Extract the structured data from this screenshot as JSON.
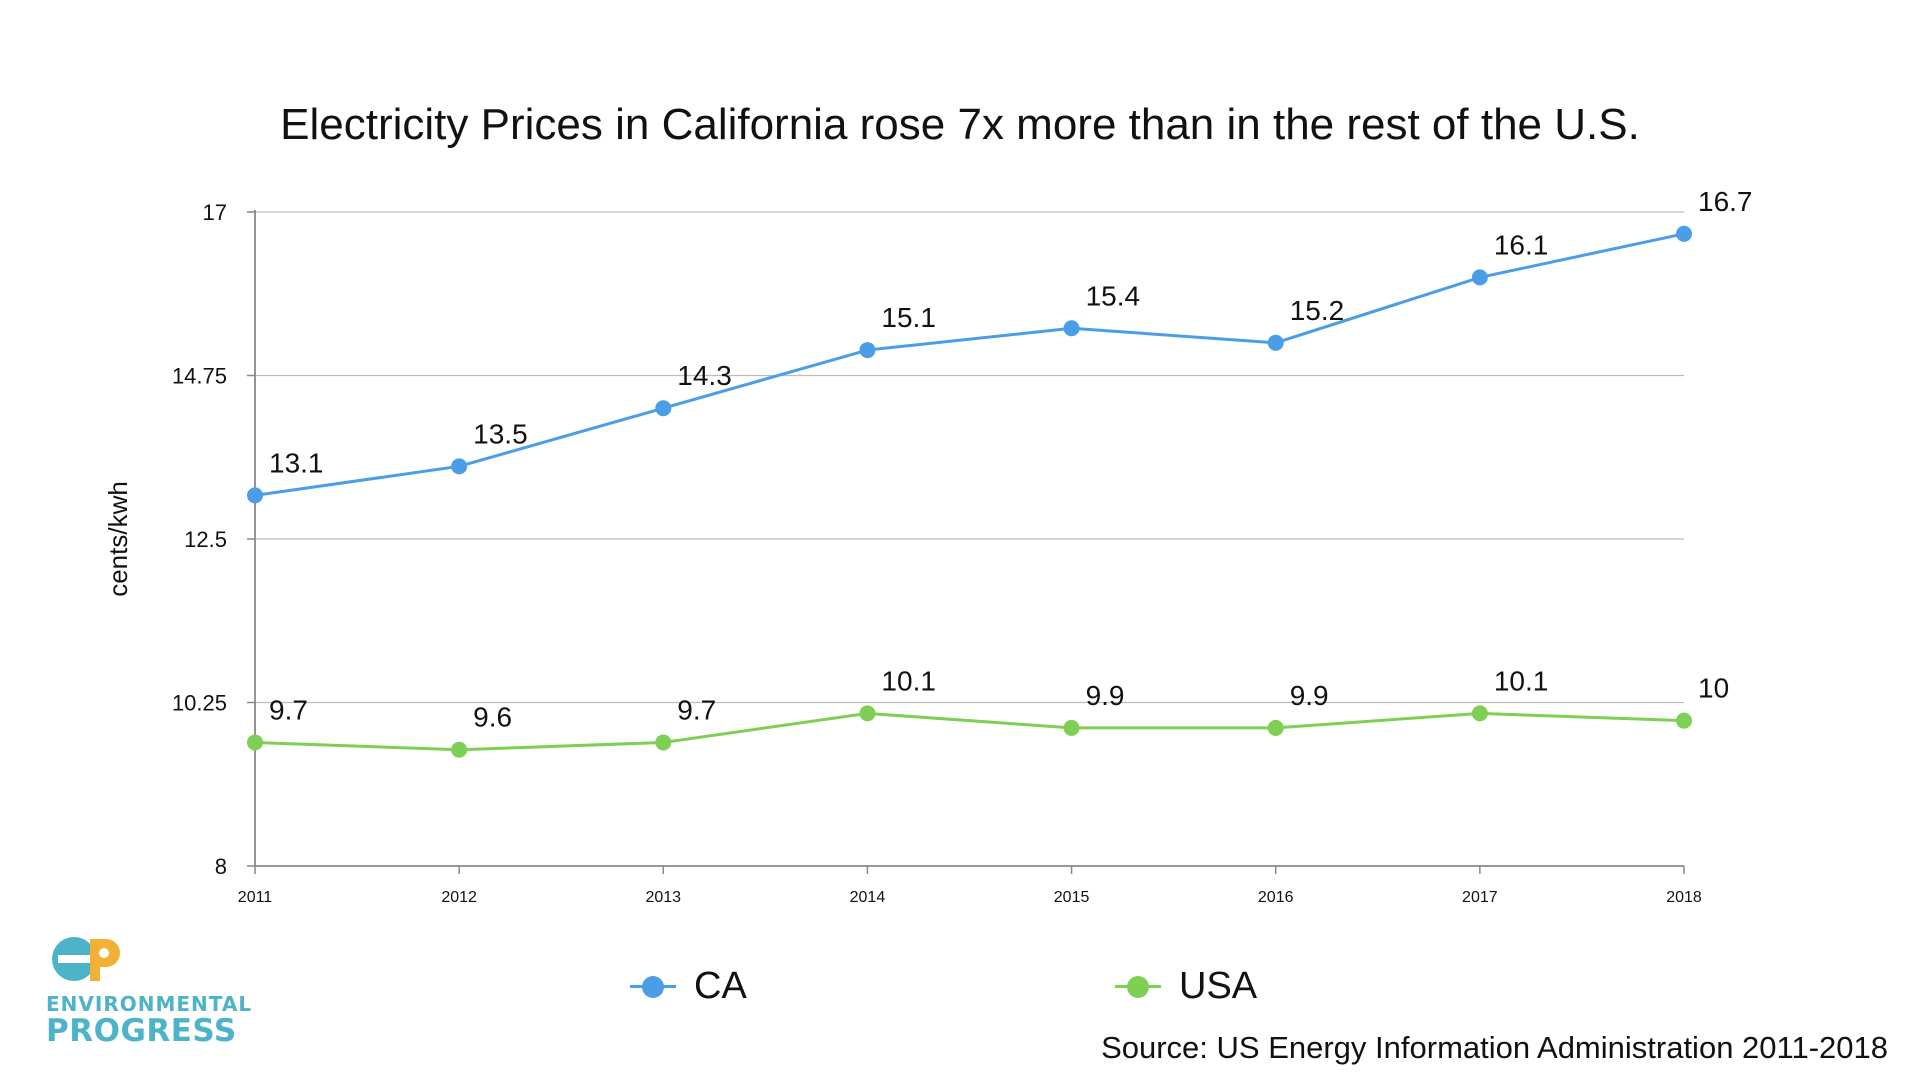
{
  "chart_data": {
    "type": "line",
    "title": "Electricity Prices in California rose 7x more than in the rest of the U.S.",
    "ylabel": "cents/kwh",
    "xlabel": "",
    "categories": [
      "2011",
      "2012",
      "2013",
      "2014",
      "2015",
      "2016",
      "2017",
      "2018"
    ],
    "ylim": [
      8,
      17
    ],
    "yticks": [
      8,
      10.25,
      12.5,
      14.75,
      17
    ],
    "ytick_labels": [
      "8",
      "10.25",
      "12.5",
      "14.75",
      "17"
    ],
    "grid": true,
    "legend_position": "bottom-center",
    "series": [
      {
        "name": "CA",
        "color": "#4a9de6",
        "values": [
          13.1,
          13.5,
          14.3,
          15.1,
          15.4,
          15.2,
          16.1,
          16.7
        ],
        "labels": [
          "13.1",
          "13.5",
          "14.3",
          "15.1",
          "15.4",
          "15.2",
          "16.1",
          "16.7"
        ]
      },
      {
        "name": "USA",
        "color": "#7ecf54",
        "values": [
          9.7,
          9.6,
          9.7,
          10.1,
          9.9,
          9.9,
          10.1,
          10
        ],
        "labels": [
          "9.7",
          "9.6",
          "9.7",
          "10.1",
          "9.9",
          "9.9",
          "10.1",
          "10"
        ]
      }
    ],
    "source": "Source: US Energy  Information Administration  2011-2018"
  },
  "logo": {
    "line1": "ENVIRONMENTAL",
    "line2": "PROGRESS",
    "mark": "ep",
    "colors": {
      "e": "#4cb3c8",
      "p": "#f2b134"
    }
  }
}
